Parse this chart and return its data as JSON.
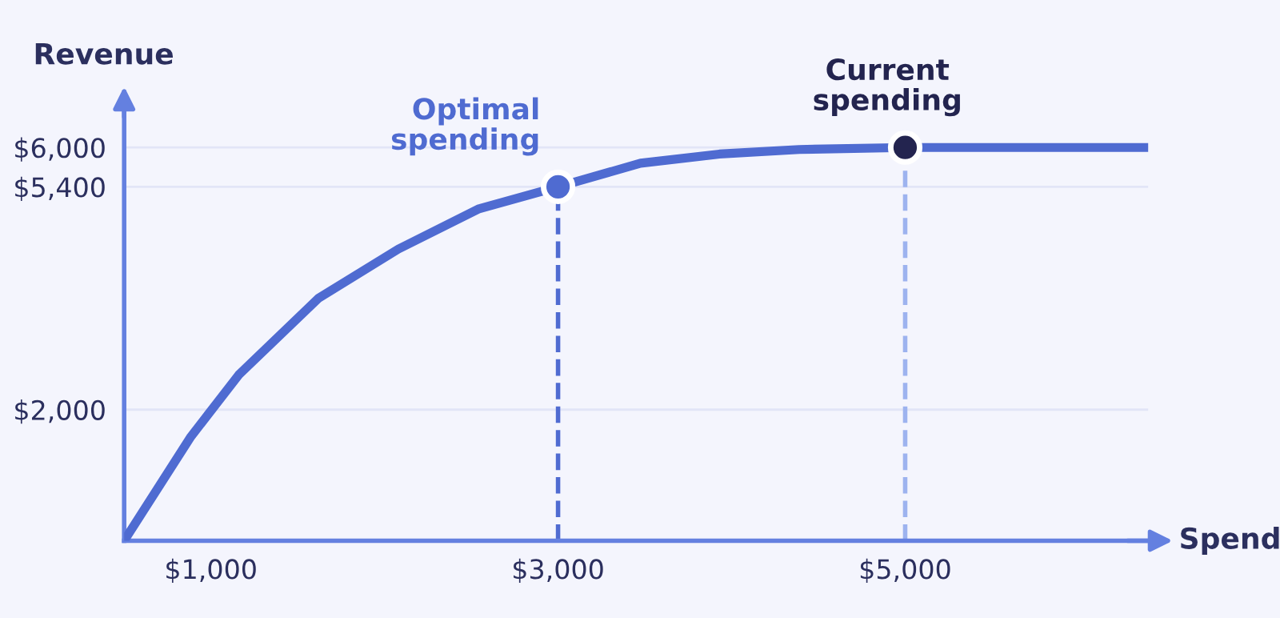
{
  "chart_data": {
    "type": "line",
    "xlabel": "Spend",
    "ylabel": "Revenue",
    "x": [
      500,
      885,
      1160,
      1620,
      2080,
      2540,
      3000,
      3475,
      3930,
      4390,
      5000,
      5700,
      6400
    ],
    "series": [
      {
        "color": "#4f6bd1",
        "values": [
          0,
          1590,
          2530,
          3700,
          4450,
          5060,
          5400,
          5760,
          5900,
          5970,
          6000,
          6000,
          6000
        ]
      },
      {
        "type": "scatter",
        "marker": "circle",
        "color": "#4f6bd1",
        "x": [
          3000
        ],
        "values": [
          5400
        ]
      },
      {
        "type": "scatter",
        "marker": "circle",
        "color": "#23244f",
        "x": [
          5000
        ],
        "values": [
          6000
        ]
      }
    ],
    "xlim": [
      500,
      6400
    ],
    "ylim": [
      0,
      6600
    ],
    "xticks": [
      {
        "value": 1000,
        "label": "$1,000"
      },
      {
        "value": 3000,
        "label": "$3,000"
      },
      {
        "value": 5000,
        "label": "$5,000"
      }
    ],
    "yticks": [
      {
        "value": 2000,
        "label": "$2,000"
      },
      {
        "value": 5400,
        "label": "$5,400"
      },
      {
        "value": 6000,
        "label": "$6,000"
      }
    ],
    "grid": "y",
    "line_style": "solid",
    "ref_lines": [
      {
        "axis": "x",
        "value": 3000,
        "color": "#4f6bd1",
        "line_style": "dashed"
      },
      {
        "axis": "x",
        "value": 5000,
        "color": "#9db3ef",
        "line_style": "dashed"
      }
    ],
    "annotations": [
      {
        "text": "Optimal\nspending",
        "x": 3000,
        "y": 5400
      },
      {
        "text": "Current\nspending",
        "x": 5000,
        "y": 6000
      }
    ]
  }
}
